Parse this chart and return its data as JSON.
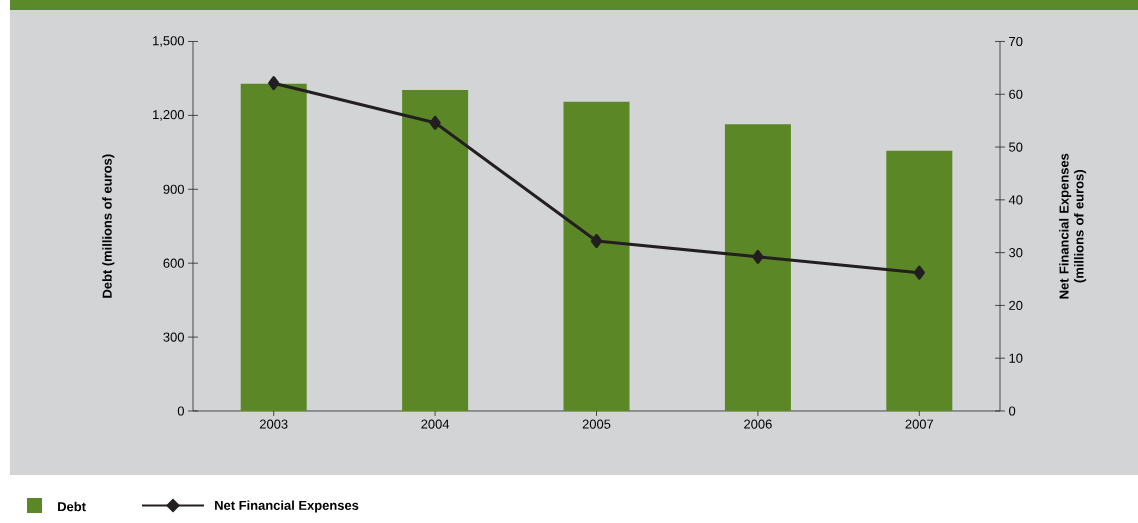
{
  "chart_data": {
    "type": "bar",
    "categories": [
      "2003",
      "2004",
      "2005",
      "2006",
      "2007"
    ],
    "series": [
      {
        "name": "Debt",
        "color": "#5b8727",
        "values": [
          1328,
          1303,
          1255,
          1164,
          1056
        ]
      },
      {
        "name": "Net Financial Expenses",
        "type": "line",
        "axis": "y2",
        "color": "#231f20",
        "marker": "diamond",
        "values": [
          62.1,
          54.6,
          32.2,
          29.2,
          26.2
        ]
      }
    ],
    "ylabel": "Debt (millions of euros)",
    "y2label": "Net Financial Expenses (millions of euros)",
    "ylim": [
      0,
      1500
    ],
    "yticks": [
      0,
      300,
      600,
      900,
      {
        "value": 1200,
        "label": "1,200"
      },
      {
        "value": 1500,
        "label": "1,500"
      }
    ],
    "y2lim": [
      0,
      70
    ],
    "y2ticks": [
      0,
      10,
      20,
      30,
      40,
      50,
      60,
      70
    ],
    "legend": "bottom left",
    "grid": false
  }
}
